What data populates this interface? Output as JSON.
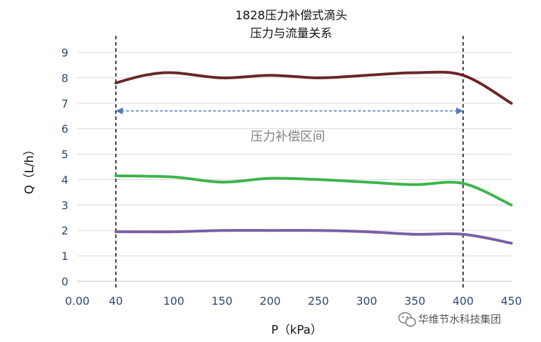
{
  "chart_data": {
    "type": "line",
    "title_lines": [
      "1828压力补偿式滴头",
      "压力与流量关系"
    ],
    "xlabel": "P（kPa）",
    "ylabel": "Q（L/h）",
    "x_tick_labels": [
      "0.00",
      "40",
      "100",
      "150",
      "200",
      "250",
      "300",
      "350",
      "400",
      "450"
    ],
    "x_tick_values": [
      0,
      40,
      100,
      150,
      200,
      250,
      300,
      350,
      400,
      450
    ],
    "ylim": [
      0,
      9
    ],
    "y_ticks": [
      0,
      1,
      2,
      3,
      4,
      5,
      6,
      7,
      8,
      9
    ],
    "grid": true,
    "vlines": [
      40,
      400
    ],
    "annotation": {
      "text": "压力补偿区间",
      "x_from": 40,
      "x_to": 400,
      "y": 6.7
    },
    "series": [
      {
        "color": "#6b2528",
        "x": [
          40,
          70,
          100,
          150,
          200,
          250,
          300,
          350,
          400,
          450
        ],
        "values": [
          7.8,
          8.1,
          8.2,
          8.0,
          8.1,
          8.0,
          8.1,
          8.2,
          8.1,
          7.0
        ]
      },
      {
        "color": "#3bb54a",
        "x": [
          40,
          100,
          150,
          200,
          250,
          300,
          350,
          400,
          450
        ],
        "values": [
          4.15,
          4.1,
          3.9,
          4.05,
          4.0,
          3.9,
          3.8,
          3.85,
          3.0
        ]
      },
      {
        "color": "#7b5ea6",
        "x": [
          40,
          100,
          150,
          200,
          250,
          300,
          350,
          400,
          450
        ],
        "values": [
          1.95,
          1.95,
          2.0,
          2.0,
          2.0,
          1.95,
          1.85,
          1.85,
          1.5
        ]
      }
    ]
  },
  "watermark": {
    "text": "华维节水科技集团",
    "icon": "wechat-icon"
  },
  "colors": {
    "axis_text": "#2e4a6e",
    "grid": "#d9d9d9",
    "annotation_arrow": "#4a7ab5"
  }
}
